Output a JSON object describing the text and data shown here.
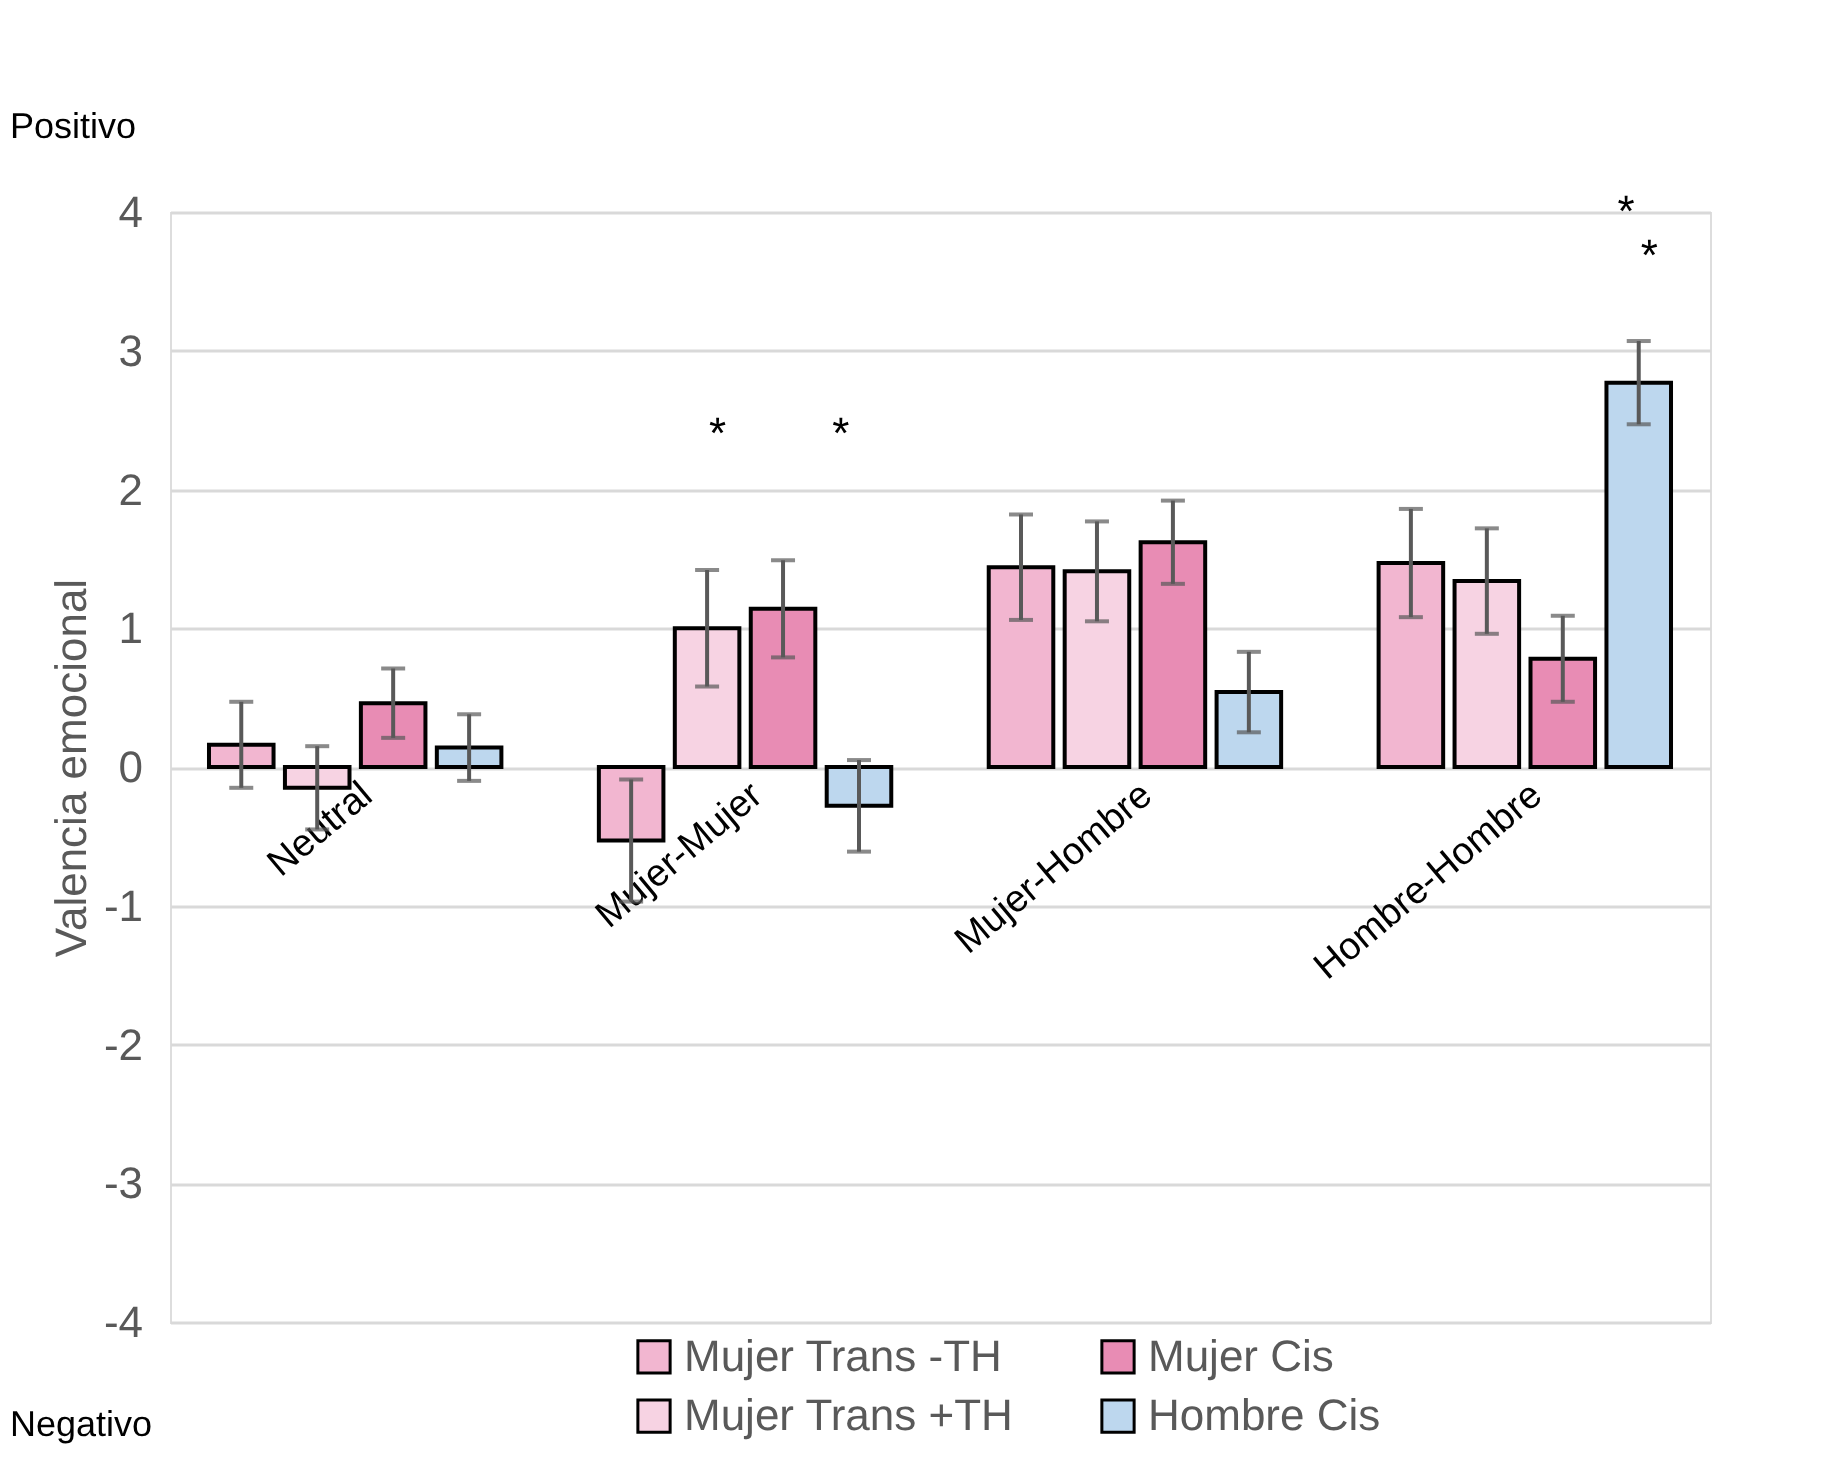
{
  "chart_data": {
    "type": "bar",
    "ylabel": "Valencia emocional",
    "categories": [
      "Neutral",
      "Mujer-Mujer",
      "Mujer-Hombre",
      "Hombre-Hombre"
    ],
    "series": [
      {
        "name": "Mujer Trans -TH",
        "color": "#f2b6d0",
        "values": [
          0.16,
          -0.53,
          1.44,
          1.47
        ],
        "errors": [
          0.31,
          0.44,
          0.38,
          0.39
        ]
      },
      {
        "name": "Mujer Trans +TH",
        "color": "#f7d3e3",
        "values": [
          -0.15,
          1.0,
          1.41,
          1.34
        ],
        "errors": [
          0.3,
          0.42,
          0.36,
          0.38
        ]
      },
      {
        "name": "Mujer Cis",
        "color": "#e88cb4",
        "values": [
          0.46,
          1.14,
          1.62,
          0.78
        ],
        "errors": [
          0.25,
          0.35,
          0.3,
          0.31
        ]
      },
      {
        "name": "Hombre Cis",
        "color": "#bdd7ee",
        "values": [
          0.14,
          -0.28,
          0.54,
          2.77
        ],
        "errors": [
          0.24,
          0.33,
          0.29,
          0.3
        ]
      }
    ],
    "ylim": [
      -4,
      4
    ],
    "yticks": [
      -4,
      -3,
      -2,
      -1,
      0,
      1,
      2,
      3,
      4
    ],
    "grid": "y",
    "legend": "bottom",
    "annotations": [
      "Positivo",
      "Negativo",
      "*",
      "*",
      "*",
      "*"
    ]
  }
}
